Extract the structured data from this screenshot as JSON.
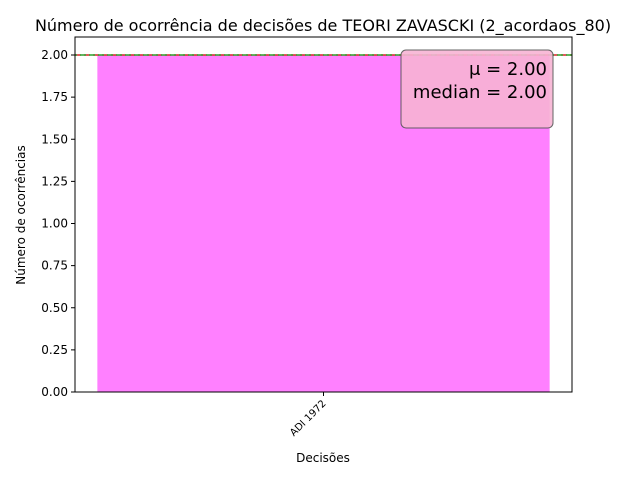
{
  "chart_data": {
    "type": "bar",
    "title": "Número de ocorrência de decisões de TEORI ZAVASCKI (2_acordaos_80)",
    "xlabel": "Decisões",
    "ylabel": "Número de ocorrências",
    "categories": [
      "ADI 1972"
    ],
    "values": [
      2.0
    ],
    "ylim": [
      0,
      2.0
    ],
    "yticks": [
      "0.00",
      "0.25",
      "0.50",
      "0.75",
      "1.00",
      "1.25",
      "1.50",
      "1.75",
      "2.00"
    ],
    "bar_color": "#ff80ff",
    "mean": 2.0,
    "median": 2.0,
    "mean_line_color": "#d62728",
    "median_line_color": "#2ca02c",
    "stats_box": {
      "mean_text": "μ = 2.00",
      "median_text": "median = 2.00",
      "fill": "#f8b4d4",
      "position": "top-right"
    },
    "grid": false
  }
}
